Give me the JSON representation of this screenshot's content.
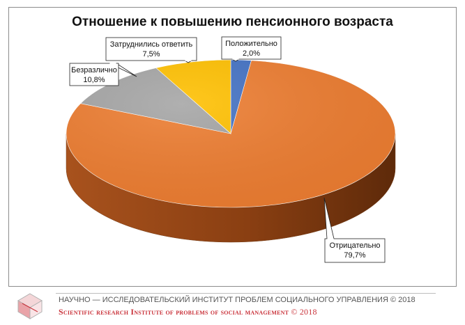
{
  "chart_data": {
    "type": "pie",
    "title": "Отношение к повышению пенсионного возраста",
    "slices": [
      {
        "label": "Положительно",
        "value": 2.0,
        "value_text": "2,0%",
        "color": "#4472c4"
      },
      {
        "label": "Отрицательно",
        "value": 79.7,
        "value_text": "79,7%",
        "color": "#ed7d31"
      },
      {
        "label": "Безразлично",
        "value": 10.8,
        "value_text": "10,8%",
        "color": "#a5a5a5"
      },
      {
        "label": "Затруднились ответить",
        "value": 7.5,
        "value_text": "7,5%",
        "color": "#ffc000"
      }
    ],
    "style": "3d-pie",
    "legend": "none"
  },
  "footer": {
    "line_ru": "НАУЧНО — ИССЛЕДОВАТЕЛЬСКИЙ ИНСТИТУТ ПРОБЛЕМ СОЦИАЛЬНОГО УПРАВЛЕНИЯ © 2018",
    "line_en": "Scientific research Institute of problems of social management",
    "line_en_copy": "© 2018",
    "logo_icon": "cube-logo-icon"
  }
}
